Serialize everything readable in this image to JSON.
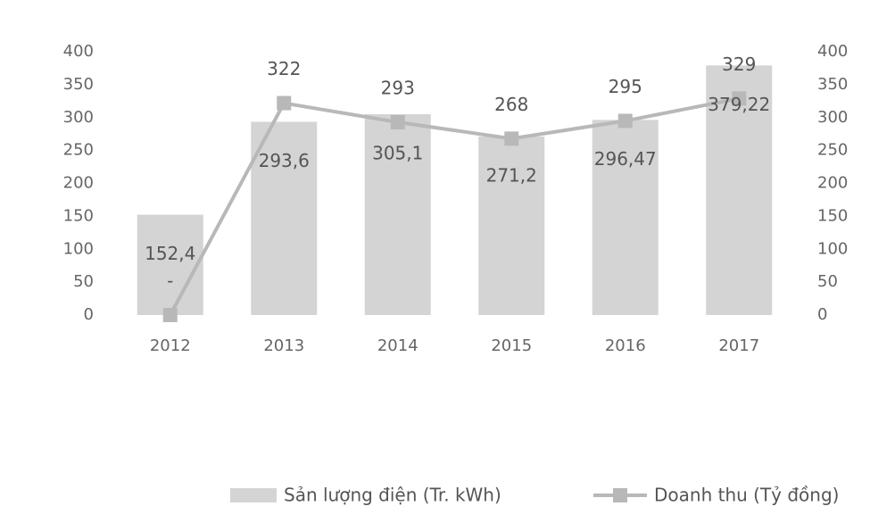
{
  "chart_data": {
    "type": "bar_line",
    "categories": [
      "2012",
      "2013",
      "2014",
      "2015",
      "2016",
      "2017"
    ],
    "series": [
      {
        "name": "Sản lượng điện (Tr. kWh)",
        "type": "bar",
        "color": "#d4d4d4",
        "values": [
          152.4,
          293.6,
          305.1,
          271.2,
          296.47,
          379.22
        ],
        "value_labels": [
          "152,4",
          "293,6",
          "305,1",
          "271,2",
          "296,47",
          "379,22"
        ]
      },
      {
        "name": "Doanh thu (Tỷ đồng)",
        "type": "line",
        "axis": "y2",
        "color": "#b8b8b8",
        "values": [
          0,
          322,
          293,
          268,
          295,
          329
        ],
        "value_labels": [
          "-",
          "322",
          "293",
          "268",
          "295",
          "329"
        ]
      }
    ],
    "ylim": [
      0,
      400
    ],
    "yticks": [
      0,
      50,
      100,
      150,
      200,
      250,
      300,
      350,
      400
    ],
    "y2lim": [
      0,
      400
    ],
    "y2ticks": [
      0,
      50,
      100,
      150,
      200,
      250,
      300,
      350,
      400
    ],
    "legend": "bottom"
  }
}
